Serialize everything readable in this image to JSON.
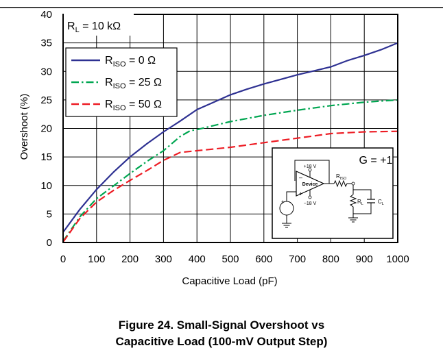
{
  "chart_data": {
    "type": "line",
    "xlabel": "Capacitive Load (pF)",
    "ylabel": "Overshoot (%)",
    "xlim": [
      0,
      1000
    ],
    "ylim": [
      0,
      40
    ],
    "xticks": [
      "0",
      "100",
      "200",
      "300",
      "400",
      "500",
      "600",
      "700",
      "800",
      "900",
      "1000"
    ],
    "yticks": [
      "0",
      "5",
      "10",
      "15",
      "20",
      "25",
      "30",
      "35",
      "40"
    ],
    "grid": true,
    "legend_position": "top-left",
    "annotation_rl": "R_L = 10 kΩ",
    "series": [
      {
        "name": "R_ISO = 0 Ω",
        "color": "#2e3192",
        "dash": "solid",
        "x": [
          0,
          50,
          100,
          150,
          200,
          250,
          300,
          350,
          400,
          450,
          500,
          550,
          600,
          650,
          700,
          750,
          800,
          850,
          900,
          950,
          1000
        ],
        "y": [
          1.8,
          5.8,
          9.3,
          12.3,
          15.0,
          17.3,
          19.4,
          21.3,
          23.3,
          24.6,
          25.9,
          26.9,
          27.8,
          28.6,
          29.4,
          30.1,
          30.8,
          31.9,
          32.8,
          33.8,
          35.0
        ]
      },
      {
        "name": "R_ISO = 25 Ω",
        "color": "#00a651",
        "dash": "dashdot",
        "x": [
          0,
          50,
          100,
          150,
          200,
          250,
          300,
          350,
          380,
          400,
          450,
          500,
          600,
          700,
          800,
          900,
          1000
        ],
        "y": [
          0.2,
          4.5,
          7.7,
          9.9,
          12.1,
          14.2,
          16.1,
          18.6,
          19.6,
          19.8,
          20.5,
          21.2,
          22.3,
          23.2,
          24.0,
          24.6,
          25.0
        ]
      },
      {
        "name": "R_ISO = 50 Ω",
        "color": "#ed1c24",
        "dash": "dashed",
        "x": [
          0,
          50,
          100,
          150,
          200,
          250,
          300,
          350,
          400,
          450,
          500,
          600,
          700,
          800,
          900,
          1000
        ],
        "y": [
          0.1,
          4.2,
          7.1,
          9.1,
          10.9,
          12.6,
          14.4,
          15.8,
          16.1,
          16.4,
          16.7,
          17.5,
          18.3,
          19.1,
          19.4,
          19.5
        ]
      }
    ],
    "inset": {
      "gain_label": "G = +1",
      "supply_pos": "+18 V",
      "supply_neg": "−18 V",
      "device_label": "Device",
      "riso_label": "R",
      "riso_sub": "ISO",
      "rl_label": "R",
      "rl_sub": "L",
      "cl_label": "C",
      "cl_sub": "L",
      "minus_sign": "–",
      "plus_sign": "+"
    }
  },
  "caption": {
    "line1": "Figure 24. Small-Signal Overshoot vs",
    "line2": "Capacitive Load (100-mV Output Step)"
  }
}
